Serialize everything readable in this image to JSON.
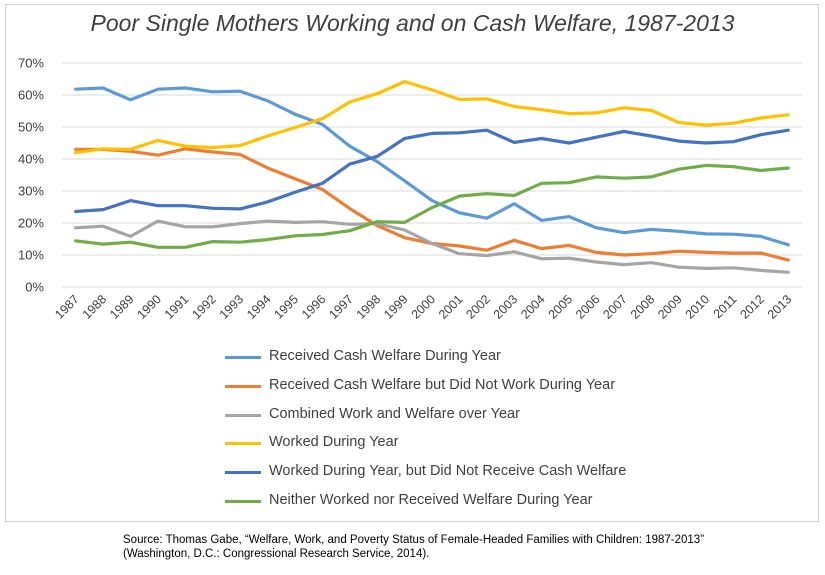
{
  "chart_data": {
    "type": "line",
    "title": "Poor Single Mothers Working and on Cash Welfare, 1987-2013",
    "xlabel": "",
    "ylabel": "",
    "ylim": [
      0,
      70
    ],
    "yticks": [
      "0%",
      "10%",
      "20%",
      "30%",
      "40%",
      "50%",
      "60%",
      "70%"
    ],
    "grid": true,
    "legend_position": "bottom",
    "categories": [
      "1987",
      "1988",
      "1989",
      "1990",
      "1991",
      "1992",
      "1993",
      "1994",
      "1995",
      "1996",
      "1997",
      "1998",
      "1999",
      "2000",
      "2001",
      "2002",
      "2003",
      "2004",
      "2005",
      "2006",
      "2007",
      "2008",
      "2009",
      "2010",
      "2011",
      "2012",
      "2013"
    ],
    "series": [
      {
        "name": "Received Cash Welfare During Year",
        "color": "#5b9bd5",
        "values": [
          61.8,
          62.2,
          58.5,
          61.8,
          62.2,
          61.0,
          61.2,
          58.2,
          54.0,
          50.8,
          44.0,
          39.2,
          33.2,
          27.0,
          23.2,
          21.5,
          26.0,
          20.8,
          22.0,
          18.5,
          17.0,
          18.0,
          17.4,
          16.6,
          16.5,
          15.8,
          13.2
        ]
      },
      {
        "name": "Received Cash Welfare but Did Not Work During Year",
        "color": "#ed7d31",
        "values": [
          43.0,
          43.0,
          42.4,
          41.2,
          43.2,
          42.2,
          41.4,
          37.2,
          33.8,
          30.5,
          24.5,
          19.2,
          15.4,
          13.6,
          12.8,
          11.5,
          14.6,
          12.0,
          13.0,
          10.8,
          10.0,
          10.4,
          11.2,
          10.8,
          10.6,
          10.6,
          8.4
        ]
      },
      {
        "name": "Combined Work and Welfare over Year",
        "color": "#a5a5a5",
        "values": [
          18.5,
          19.0,
          15.8,
          20.6,
          18.8,
          18.8,
          19.8,
          20.6,
          20.2,
          20.4,
          19.6,
          19.8,
          17.8,
          13.6,
          10.4,
          9.8,
          11.0,
          8.8,
          9.0,
          7.8,
          7.0,
          7.6,
          6.2,
          5.8,
          6.0,
          5.2,
          4.6
        ]
      },
      {
        "name": "Worked During Year",
        "color": "#ffc000",
        "values": [
          42.0,
          43.2,
          43.0,
          45.8,
          44.0,
          43.6,
          44.2,
          47.2,
          49.8,
          52.6,
          57.8,
          60.4,
          64.2,
          61.6,
          58.6,
          58.8,
          56.4,
          55.4,
          54.2,
          54.4,
          56.0,
          55.2,
          51.4,
          50.6,
          51.2,
          52.8,
          53.8
        ]
      },
      {
        "name": "Worked During Year, but Did Not Receive Cash Welfare",
        "color": "#4472c4",
        "values": [
          23.6,
          24.2,
          27.0,
          25.4,
          25.4,
          24.6,
          24.4,
          26.6,
          29.6,
          32.4,
          38.4,
          40.8,
          46.4,
          48.0,
          48.2,
          49.0,
          45.2,
          46.4,
          45.0,
          46.8,
          48.6,
          47.2,
          45.6,
          45.0,
          45.4,
          47.6,
          49.0
        ]
      },
      {
        "name": "Neither Worked nor Received Welfare During Year",
        "color": "#70ad47",
        "values": [
          14.4,
          13.4,
          14.0,
          12.4,
          12.4,
          14.2,
          14.0,
          14.8,
          16.0,
          16.4,
          17.6,
          20.4,
          20.2,
          24.8,
          28.4,
          29.2,
          28.6,
          32.4,
          32.6,
          34.4,
          34.0,
          34.4,
          36.8,
          38.0,
          37.6,
          36.4,
          37.2
        ]
      }
    ]
  },
  "source_text": "Source: Thomas Gabe, “Welfare, Work, and Poverty Status of Female-Headed Families with Children: 1987-2013”\n(Washington, D.C.: Congressional Research Service, 2014)."
}
